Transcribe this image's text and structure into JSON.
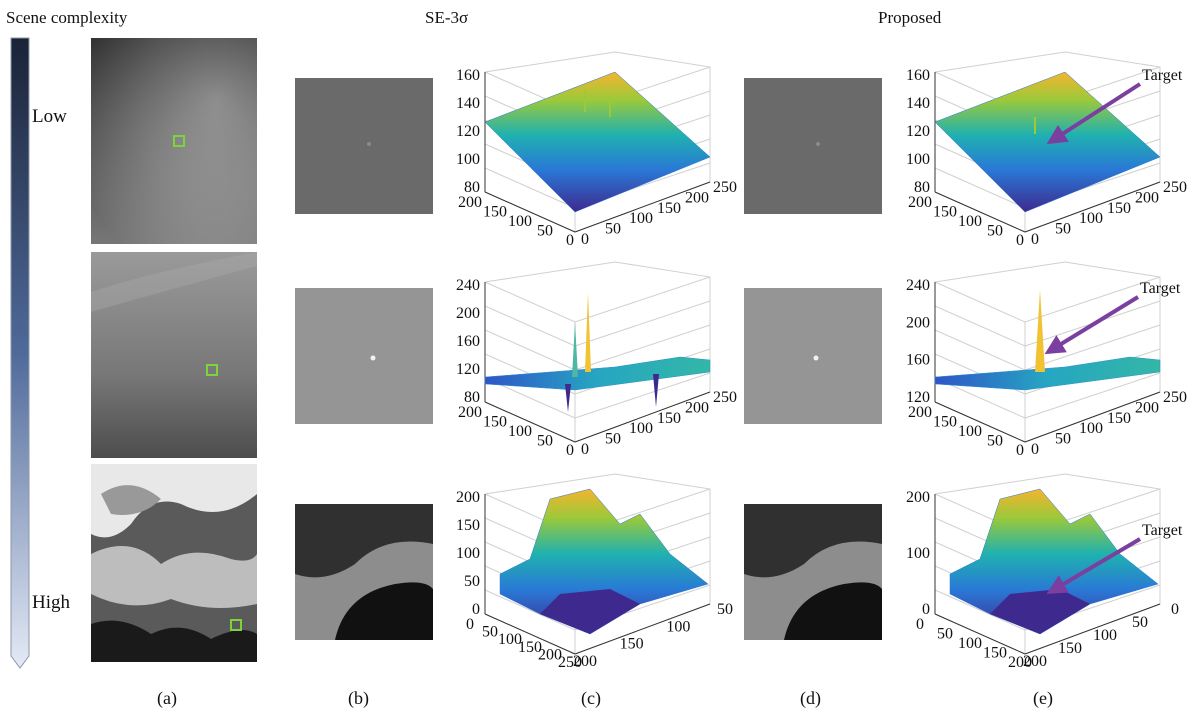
{
  "headers": {
    "scene_complexity": "Scene complexity",
    "se3sigma": "SE-3σ",
    "proposed": "Proposed"
  },
  "complexity_scale": {
    "low": "Low",
    "high": "High"
  },
  "column_labels": [
    "(a)",
    "(b)",
    "(c)",
    "(d)",
    "(e)"
  ],
  "annotation": {
    "target": "Target"
  },
  "colors": {
    "target_arrow": "#7b3fa0",
    "marker_box": "#7dd43a",
    "scale_dark": "#1a2336",
    "scale_light": "#dfe7f6"
  },
  "rows": [
    {
      "se3sigma": {
        "z_ticks": [
          "160",
          "140",
          "120",
          "100",
          "80"
        ],
        "y_ticks": [
          "200",
          "150",
          "100",
          "50",
          "0"
        ],
        "x_ticks": [
          "0",
          "50",
          "100",
          "150",
          "200",
          "250"
        ]
      },
      "proposed": {
        "z_ticks": [
          "160",
          "140",
          "120",
          "100",
          "80"
        ],
        "y_ticks": [
          "200",
          "150",
          "100",
          "50",
          "0"
        ],
        "x_ticks": [
          "0",
          "50",
          "100",
          "150",
          "200",
          "250"
        ]
      }
    },
    {
      "se3sigma": {
        "z_ticks": [
          "240",
          "200",
          "160",
          "120",
          "80"
        ],
        "y_ticks": [
          "200",
          "150",
          "100",
          "50",
          "0"
        ],
        "x_ticks": [
          "0",
          "50",
          "100",
          "150",
          "200",
          "250"
        ]
      },
      "proposed": {
        "z_ticks": [
          "240",
          "200",
          "160",
          "120"
        ],
        "y_ticks": [
          "200",
          "150",
          "100",
          "50",
          "0"
        ],
        "x_ticks": [
          "0",
          "50",
          "100",
          "150",
          "200",
          "250"
        ]
      }
    },
    {
      "se3sigma": {
        "z_ticks": [
          "200",
          "150",
          "100",
          "50",
          "0"
        ],
        "y_ticks": [
          "0",
          "50",
          "100",
          "150",
          "200",
          "250"
        ],
        "x_ticks": [
          "200",
          "150",
          "100",
          "50"
        ]
      },
      "proposed": {
        "z_ticks": [
          "200",
          "100",
          "0"
        ],
        "y_ticks": [
          "0",
          "50",
          "100",
          "150",
          "200"
        ],
        "x_ticks": [
          "200",
          "150",
          "100",
          "50",
          "0"
        ]
      }
    }
  ]
}
